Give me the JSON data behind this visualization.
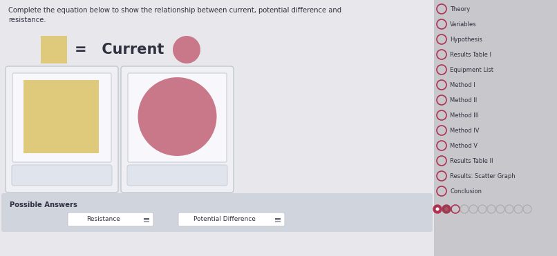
{
  "bg_color": "#d8d8dc",
  "left_bg": "#e8e8ec",
  "nav_bg": "#c8c8cc",
  "instruction_text_line1": "Complete the equation below to show the relationship between current, potential difference and",
  "instruction_text_line2": "resistance.",
  "yellow_color": "#dfc97a",
  "pink_color": "#c87888",
  "card_bg": "#f0f0f4",
  "card_border": "#c0c8d0",
  "card_inner_bg": "#f8f8fc",
  "label_bg": "#e0e4ec",
  "label_border": "#c8ccd8",
  "possible_answers_bg": "#d0d4dc",
  "possible_answers_label": "Possible Answers",
  "answer1": "Resistance",
  "answer2": "Potential Difference",
  "nav_items": [
    "Theory",
    "Variables",
    "Hypothesis",
    "Results Table I",
    "Equipment List",
    "Method I",
    "Method II",
    "Method III",
    "Method IV",
    "Method V",
    "Results Table II",
    "Results: Scatter Graph",
    "Conclusion"
  ],
  "nav_circle_color": "#b03050",
  "nav_text_color": "#303040",
  "text_color": "#303040",
  "font_size_instruction": 7.2,
  "figw": 8.06,
  "figh": 3.71,
  "dpi": 100
}
